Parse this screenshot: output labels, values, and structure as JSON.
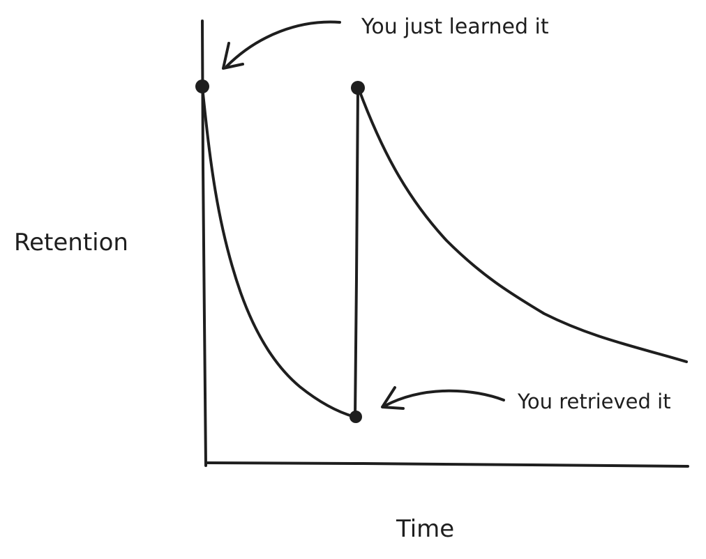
{
  "chart_data": {
    "type": "line",
    "xlabel": "Time",
    "ylabel": "Retention",
    "colors": {
      "ink": "#1e1e1e",
      "background": "#ffffff"
    },
    "annotations": [
      {
        "id": "learned",
        "text": "You just learned it"
      },
      {
        "id": "retrieved",
        "text": "You retrieved it"
      }
    ]
  }
}
